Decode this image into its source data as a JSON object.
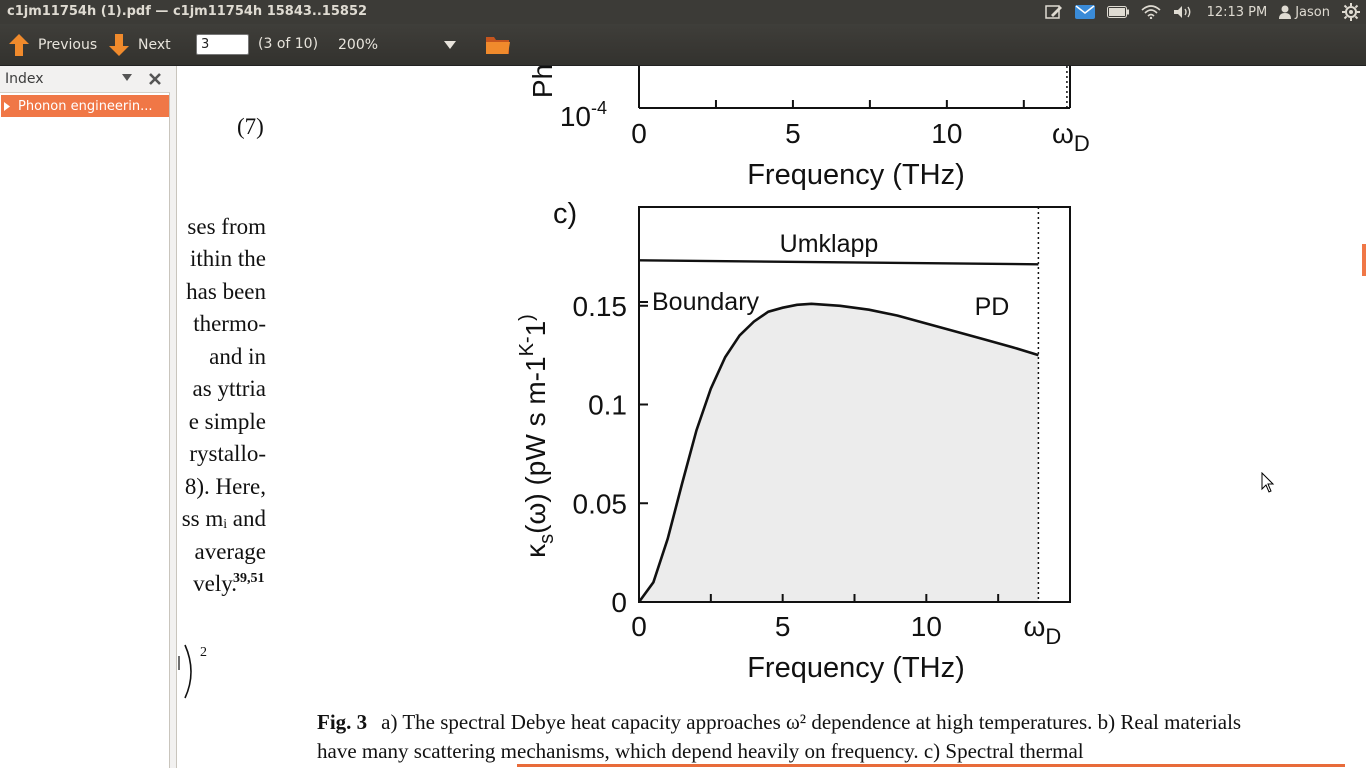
{
  "window": {
    "title": "c1jm11754h (1).pdf — c1jm11754h 15843..15852"
  },
  "tray": {
    "time": "12:13 PM",
    "user": "Jason"
  },
  "toolbar": {
    "previous_label": "Previous",
    "next_label": "Next",
    "page_value": "3",
    "page_count": "(3 of 10)",
    "zoom_value": "200%"
  },
  "sidebar": {
    "title": "Index",
    "items": [
      {
        "label": "Phonon engineerin..."
      }
    ]
  },
  "document": {
    "equation_number": "(7)",
    "body_fragments": [
      "ses from",
      "ithin the",
      "has been",
      "thermo-",
      "and  in",
      "as yttria",
      "e simple",
      "rystallo-",
      "8). Here,",
      "ss mᵢ and",
      "average",
      "vely."
    ],
    "body_citation": "39,51",
    "caption_label": "Fig. 3",
    "caption_text": "a) The spectral Debye heat capacity approaches ω² dependence at high temperatures. b) Real materials have many scattering mechanisms, which depend heavily on frequency. c) Spectral thermal"
  },
  "chart_data": [
    {
      "panel": "b",
      "type": "line",
      "partial": true,
      "xlabel": "Frequency (THz)",
      "ylabel": "Ph",
      "x_tick_labels": [
        "0",
        "5",
        "10",
        "ωD"
      ],
      "y_tick_labels": [
        "10-4"
      ],
      "xlim": [
        0,
        14
      ]
    },
    {
      "panel": "c",
      "type": "area",
      "panel_label": "c)",
      "xlabel": "Frequency (THz)",
      "ylabel": "κs(ω) (pW s m-1K-1)",
      "xlim": [
        0,
        15
      ],
      "ylim": [
        0,
        0.2
      ],
      "x_ticks": [
        0,
        5,
        10
      ],
      "x_tick_labels": [
        "0",
        "5",
        "10",
        "ωD"
      ],
      "y_ticks": [
        0,
        0.05,
        0.1,
        0.15
      ],
      "y_tick_labels": [
        "0",
        "0.05",
        "0.1",
        "0.15"
      ],
      "debye_frequency": 13.9,
      "annotations": [
        "Umklapp",
        "Boundary",
        "PD"
      ],
      "series": [
        {
          "name": "Umklapp",
          "x": [
            0,
            13.9
          ],
          "y": [
            0.173,
            0.171
          ]
        },
        {
          "x": [
            0,
            0.5,
            1,
            1.5,
            2,
            2.5,
            3,
            3.5,
            4,
            4.5,
            5,
            5.5,
            6,
            6.5,
            7,
            8,
            9,
            10,
            11,
            12,
            13,
            13.9
          ],
          "y": [
            0,
            0.01,
            0.032,
            0.06,
            0.087,
            0.108,
            0.124,
            0.135,
            0.142,
            0.147,
            0.149,
            0.1505,
            0.151,
            0.1505,
            0.15,
            0.148,
            0.145,
            0.141,
            0.137,
            0.133,
            0.129,
            0.125
          ]
        }
      ]
    }
  ]
}
